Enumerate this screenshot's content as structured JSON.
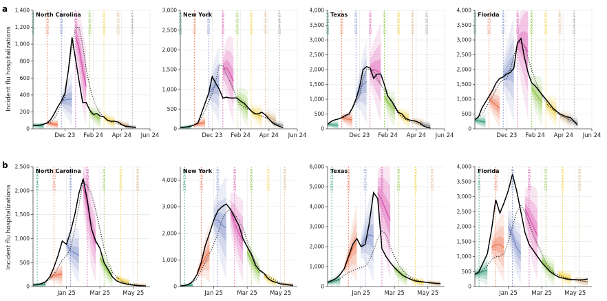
{
  "rows": [
    {
      "label": "a",
      "ylabel": "Incident flu hospitalizations",
      "xticks": [
        "Dec 23",
        "Feb 24",
        "Apr 24",
        "Jun 24"
      ],
      "vlines": [
        "2023-10-14",
        "2023-11-11",
        "2023-12-09",
        "2024-01-06",
        "2024-02-03",
        "2024-03-02",
        "2024-03-30",
        "2024-04-27"
      ],
      "colors": [
        "#3aa17e",
        "#ee7550",
        "#7d8fc8",
        "#d957b0",
        "#8fc548",
        "#f0cf3c",
        "#d9b48a",
        "#a3a3a3"
      ]
    },
    {
      "label": "b",
      "ylabel": "Incident flu hospitalizations",
      "xticks": [
        "Jan 25",
        "Mar 25",
        "May 25"
      ],
      "vlines": [
        "2024-11-23",
        "2024-12-21",
        "2025-01-18",
        "2025-02-15",
        "2025-03-15",
        "2025-04-12",
        "2025-05-10"
      ],
      "colors": [
        "#3aa17e",
        "#ee7550",
        "#7d8fc8",
        "#d957b0",
        "#8fc548",
        "#f0cf3c",
        "#d9b48a"
      ]
    }
  ],
  "chart_data": [
    {
      "type": "line",
      "title": "North Carolina",
      "panel": "a",
      "ylim": [
        0,
        1400
      ],
      "yticks": [
        0,
        200,
        400,
        600,
        800,
        1000,
        1200,
        1400
      ],
      "observed": [
        40,
        40,
        45,
        55,
        70,
        110,
        180,
        260,
        330,
        420,
        700,
        1080,
        820,
        560,
        310,
        310,
        220,
        170,
        180,
        150,
        140,
        100,
        90,
        90,
        80,
        50,
        30,
        25,
        20,
        15
      ],
      "baseline": [
        40,
        40,
        45,
        55,
        65,
        80,
        120,
        200,
        300,
        380,
        700,
        950,
        1200,
        1200,
        1000,
        700,
        500,
        350,
        250,
        180,
        140,
        100,
        80,
        70,
        60,
        50,
        40,
        30,
        25,
        20
      ],
      "forecasts": [
        {
          "start": 0,
          "median": [
            40,
            38,
            36,
            35
          ]
        },
        {
          "start": 4,
          "median": [
            70,
            60,
            55,
            50
          ]
        },
        {
          "start": 8,
          "median": [
            330,
            340,
            350,
            350
          ]
        },
        {
          "start": 12,
          "median": [
            1100,
            950,
            700,
            500
          ]
        },
        {
          "start": 16,
          "median": [
            200,
            170,
            140,
            120
          ]
        },
        {
          "start": 20,
          "median": [
            140,
            110,
            90,
            75
          ]
        },
        {
          "start": 24,
          "median": [
            80,
            60,
            45,
            35
          ]
        },
        {
          "start": 26,
          "median": [
            30,
            25,
            20,
            18
          ]
        }
      ]
    },
    {
      "type": "line",
      "title": "New York",
      "panel": "a",
      "ylim": [
        0,
        3000
      ],
      "yticks": [
        0,
        500,
        1000,
        1500,
        2000,
        2500,
        3000
      ],
      "observed": [
        30,
        40,
        50,
        70,
        100,
        150,
        400,
        650,
        900,
        1320,
        1150,
        1000,
        780,
        800,
        780,
        780,
        780,
        700,
        650,
        550,
        450,
        380,
        380,
        420,
        350,
        250,
        150,
        100,
        60,
        30
      ],
      "baseline": [
        30,
        40,
        50,
        70,
        100,
        150,
        300,
        450,
        700,
        900,
        1200,
        1600,
        1600,
        1400,
        1200,
        1000,
        750,
        600,
        550,
        500,
        450,
        400,
        350,
        320,
        280,
        230,
        180,
        130,
        100,
        80
      ],
      "forecasts": [
        {
          "start": 0,
          "median": [
            30,
            35,
            40,
            45
          ]
        },
        {
          "start": 4,
          "median": [
            100,
            120,
            140,
            160
          ]
        },
        {
          "start": 8,
          "median": [
            900,
            1000,
            1100,
            1100
          ]
        },
        {
          "start": 12,
          "median": [
            1500,
            1550,
            1400,
            1200
          ]
        },
        {
          "start": 16,
          "median": [
            780,
            700,
            600,
            500
          ]
        },
        {
          "start": 20,
          "median": [
            450,
            400,
            350,
            300
          ]
        },
        {
          "start": 24,
          "median": [
            350,
            300,
            250,
            200
          ]
        },
        {
          "start": 26,
          "median": [
            150,
            120,
            100,
            80
          ]
        }
      ]
    },
    {
      "type": "line",
      "title": "Texas",
      "panel": "a",
      "ylim": [
        0,
        4000
      ],
      "yticks": [
        0,
        500,
        1000,
        1500,
        2000,
        2500,
        3000,
        3500,
        4000
      ],
      "observed": [
        150,
        250,
        300,
        330,
        380,
        450,
        500,
        700,
        1000,
        1400,
        2000,
        2100,
        2050,
        1700,
        1850,
        1850,
        1500,
        1100,
        950,
        750,
        550,
        500,
        350,
        300,
        280,
        250,
        200,
        100,
        50,
        30
      ],
      "baseline": [
        150,
        250,
        300,
        330,
        380,
        400,
        450,
        700,
        900,
        1100,
        1700,
        2000,
        2000,
        1950,
        1700,
        1500,
        1300,
        1100,
        900,
        700,
        500,
        400,
        320,
        260,
        220,
        180,
        150,
        120,
        100,
        80
      ],
      "forecasts": [
        {
          "start": 0,
          "median": [
            150,
            140,
            130,
            120
          ]
        },
        {
          "start": 4,
          "median": [
            380,
            350,
            320,
            300
          ]
        },
        {
          "start": 8,
          "median": [
            1000,
            1300,
            1500,
            1600
          ]
        },
        {
          "start": 12,
          "median": [
            2000,
            2000,
            1950,
            1900
          ]
        },
        {
          "start": 16,
          "median": [
            1100,
            900,
            750,
            650
          ]
        },
        {
          "start": 20,
          "median": [
            550,
            450,
            380,
            320
          ]
        },
        {
          "start": 24,
          "median": [
            280,
            240,
            200,
            170
          ]
        },
        {
          "start": 26,
          "median": [
            200,
            160,
            130,
            100
          ]
        }
      ]
    },
    {
      "type": "line",
      "title": "Florida",
      "panel": "a",
      "ylim": [
        0,
        4000
      ],
      "yticks": [
        0,
        500,
        1000,
        1500,
        2000,
        2500,
        3000,
        3500,
        4000
      ],
      "observed": [
        300,
        400,
        700,
        900,
        1100,
        1300,
        1550,
        1700,
        1750,
        1850,
        1900,
        2050,
        2900,
        3050,
        2400,
        1900,
        1550,
        1450,
        1300,
        1150,
        1000,
        850,
        700,
        600,
        500,
        450,
        400,
        380,
        250,
        120
      ],
      "baseline": [
        300,
        400,
        500,
        700,
        900,
        1100,
        1350,
        1550,
        1650,
        1700,
        2000,
        2450,
        2900,
        2950,
        2800,
        2400,
        2000,
        1650,
        1350,
        1100,
        900,
        750,
        650,
        550,
        450,
        400,
        350,
        300,
        250,
        200
      ],
      "forecasts": [
        {
          "start": 0,
          "median": [
            300,
            270,
            250,
            230
          ]
        },
        {
          "start": 4,
          "median": [
            1000,
            900,
            800,
            700
          ]
        },
        {
          "start": 8,
          "median": [
            1800,
            1900,
            2000,
            2000
          ]
        },
        {
          "start": 12,
          "median": [
            2900,
            2900,
            2800,
            2600
          ]
        },
        {
          "start": 16,
          "median": [
            1400,
            1200,
            1050,
            900
          ]
        },
        {
          "start": 20,
          "median": [
            850,
            750,
            650,
            550
          ]
        },
        {
          "start": 24,
          "median": [
            450,
            400,
            350,
            300
          ]
        },
        {
          "start": 26,
          "median": [
            330,
            280,
            240,
            200
          ]
        }
      ]
    },
    {
      "type": "line",
      "title": "North Carolina",
      "panel": "b",
      "ylim": [
        0,
        2500
      ],
      "yticks": [
        0,
        500,
        1000,
        1500,
        2000,
        2500
      ],
      "observed": [
        30,
        40,
        60,
        100,
        200,
        400,
        650,
        950,
        880,
        1150,
        1500,
        1950,
        2250,
        1800,
        1200,
        950,
        800,
        500,
        350,
        200,
        120,
        80,
        60,
        40,
        30,
        20,
        15,
        10
      ],
      "baseline": [
        30,
        40,
        50,
        80,
        150,
        250,
        400,
        550,
        650,
        800,
        1200,
        1700,
        2200,
        2100,
        1900,
        1600,
        1200,
        800,
        500,
        300,
        200,
        120,
        80,
        60,
        40,
        30,
        20,
        15
      ],
      "forecasts": [
        {
          "start": 0,
          "median": [
            30,
            35,
            40,
            45
          ]
        },
        {
          "start": 4,
          "median": [
            200,
            230,
            250,
            260
          ]
        },
        {
          "start": 8,
          "median": [
            880,
            750,
            700,
            650
          ]
        },
        {
          "start": 12,
          "median": [
            2100,
            1700,
            1200,
            900
          ]
        },
        {
          "start": 16,
          "median": [
            600,
            450,
            300,
            200
          ]
        },
        {
          "start": 20,
          "median": [
            180,
            140,
            100,
            80
          ]
        },
        {
          "start": 24,
          "median": [
            40,
            30,
            25,
            20
          ]
        }
      ]
    },
    {
      "type": "line",
      "title": "New York",
      "panel": "b",
      "ylim": [
        0,
        4500
      ],
      "yticks": [
        0,
        1000,
        2000,
        3000,
        4000
      ],
      "observed": [
        20,
        40,
        80,
        200,
        450,
        900,
        1550,
        2000,
        2500,
        2850,
        3000,
        3100,
        2900,
        2600,
        2300,
        1800,
        1500,
        1200,
        800,
        600,
        500,
        300,
        200,
        150,
        100,
        80,
        60,
        40
      ],
      "baseline": [
        20,
        40,
        80,
        150,
        300,
        600,
        900,
        1200,
        1600,
        2000,
        2500,
        2800,
        2900,
        2700,
        2500,
        2200,
        1700,
        1300,
        900,
        650,
        500,
        400,
        300,
        220,
        150,
        100,
        80,
        60
      ],
      "forecasts": [
        {
          "start": 0,
          "median": [
            20,
            30,
            40,
            50
          ]
        },
        {
          "start": 4,
          "median": [
            500,
            800,
            1100,
            1300
          ]
        },
        {
          "start": 8,
          "median": [
            2500,
            2500,
            2300,
            2200
          ]
        },
        {
          "start": 12,
          "median": [
            2800,
            2400,
            2000,
            1700
          ]
        },
        {
          "start": 16,
          "median": [
            1300,
            1000,
            700,
            500
          ]
        },
        {
          "start": 20,
          "median": [
            400,
            300,
            220,
            160
          ]
        },
        {
          "start": 24,
          "median": [
            100,
            80,
            60,
            50
          ]
        }
      ]
    },
    {
      "type": "line",
      "title": "Texas",
      "panel": "b",
      "ylim": [
        0,
        6000
      ],
      "yticks": [
        0,
        1000,
        2000,
        3000,
        4000,
        5000,
        6000
      ],
      "observed": [
        200,
        300,
        400,
        600,
        900,
        1500,
        2100,
        2400,
        2000,
        2100,
        3200,
        4700,
        4400,
        1900,
        1500,
        1200,
        950,
        750,
        550,
        450,
        350,
        280,
        250,
        230,
        200,
        180,
        160,
        150
      ],
      "baseline": [
        200,
        250,
        300,
        400,
        550,
        700,
        800,
        900,
        950,
        1000,
        1300,
        1800,
        2400,
        2800,
        2600,
        2000,
        1500,
        1100,
        800,
        600,
        450,
        350,
        280,
        230,
        200,
        170,
        150,
        130
      ],
      "forecasts": [
        {
          "start": 0,
          "median": [
            200,
            250,
            300,
            350
          ]
        },
        {
          "start": 4,
          "median": [
            900,
            1400,
            1900,
            2200
          ]
        },
        {
          "start": 8,
          "median": [
            2000,
            2400,
            2600,
            2500
          ]
        },
        {
          "start": 12,
          "median": [
            4700,
            4300,
            3800,
            3300
          ]
        },
        {
          "start": 16,
          "median": [
            900,
            700,
            550,
            450
          ]
        },
        {
          "start": 20,
          "median": [
            350,
            280,
            230,
            200
          ]
        },
        {
          "start": 24,
          "median": [
            200,
            170,
            150,
            130
          ]
        }
      ]
    },
    {
      "type": "line",
      "title": "Florida",
      "panel": "b",
      "ylim": [
        0,
        4000
      ],
      "yticks": [
        0,
        500,
        1000,
        1500,
        2000,
        2500,
        3000,
        3500,
        4000
      ],
      "observed": [
        400,
        500,
        800,
        1100,
        1900,
        2900,
        2450,
        2800,
        3200,
        3750,
        3200,
        2500,
        1800,
        1400,
        1200,
        1000,
        800,
        650,
        500,
        400,
        320,
        280,
        250,
        230,
        230,
        220,
        230,
        250
      ],
      "baseline": [
        400,
        450,
        550,
        700,
        900,
        1000,
        1000,
        1100,
        1500,
        2000,
        2500,
        2700,
        2500,
        2100,
        1700,
        1400,
        1100,
        800,
        600,
        450,
        380,
        320,
        280,
        250,
        230,
        200,
        180,
        160
      ],
      "forecasts": [
        {
          "start": 0,
          "median": [
            400,
            450,
            500,
            550
          ]
        },
        {
          "start": 4,
          "median": [
            1300,
            1400,
            1400,
            1300
          ]
        },
        {
          "start": 8,
          "median": [
            2000,
            1700,
            1300,
            1100
          ]
        },
        {
          "start": 12,
          "median": [
            2600,
            2300,
            2000,
            1700
          ]
        },
        {
          "start": 16,
          "median": [
            900,
            700,
            550,
            450
          ]
        },
        {
          "start": 20,
          "median": [
            420,
            350,
            300,
            260
          ]
        },
        {
          "start": 24,
          "median": [
            230,
            200,
            170,
            150
          ]
        }
      ]
    }
  ]
}
